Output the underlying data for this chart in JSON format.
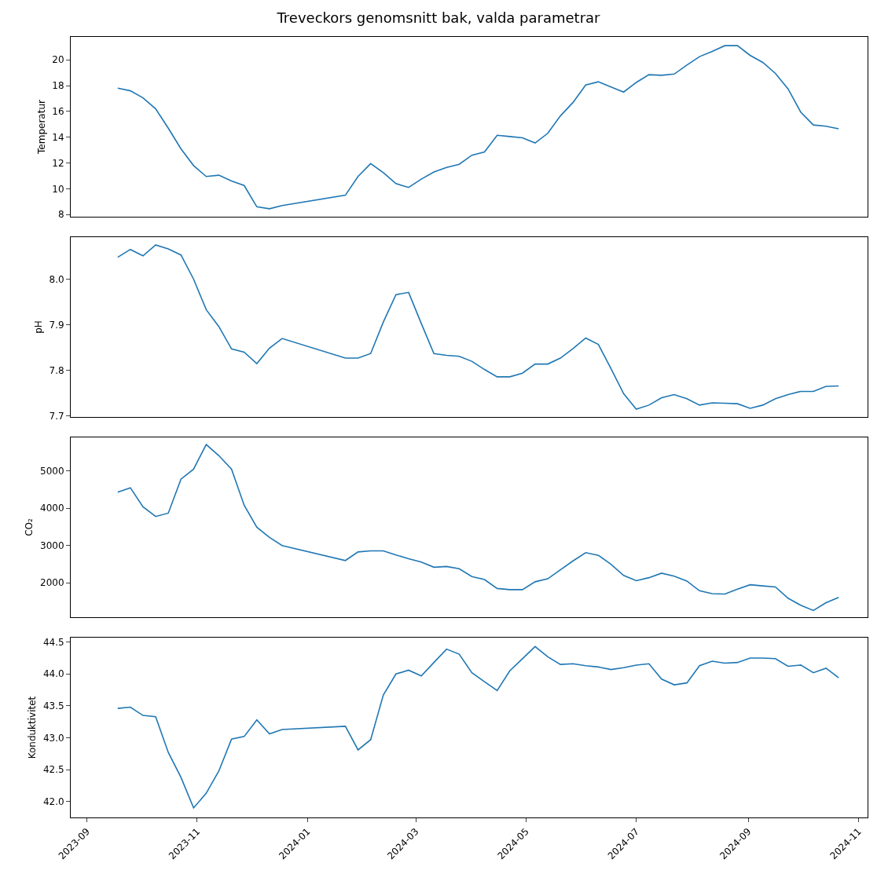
{
  "chart_data": [
    {
      "type": "line",
      "title": "Treveckors genomsnitt bak, valda parametrar",
      "ylabel": "Temperatur",
      "tick_labels": "y",
      "x": [
        "2023-09-18",
        "2023-09-25",
        "2023-10-02",
        "2023-10-09",
        "2023-10-16",
        "2023-10-23",
        "2023-10-30",
        "2023-11-06",
        "2023-11-13",
        "2023-11-20",
        "2023-11-27",
        "2023-12-04",
        "2023-12-11",
        "2023-12-18",
        "2024-01-22",
        "2024-01-29",
        "2024-02-05",
        "2024-02-12",
        "2024-02-19",
        "2024-02-26",
        "2024-03-04",
        "2024-03-11",
        "2024-03-18",
        "2024-03-25",
        "2024-04-01",
        "2024-04-08",
        "2024-04-15",
        "2024-04-22",
        "2024-04-29",
        "2024-05-06",
        "2024-05-13",
        "2024-05-20",
        "2024-05-27",
        "2024-06-03",
        "2024-06-10",
        "2024-06-17",
        "2024-06-24",
        "2024-07-01",
        "2024-07-08",
        "2024-07-15",
        "2024-07-22",
        "2024-07-29",
        "2024-08-05",
        "2024-08-12",
        "2024-08-19",
        "2024-08-26",
        "2024-09-02",
        "2024-09-09",
        "2024-09-16",
        "2024-09-23",
        "2024-09-30",
        "2024-10-07",
        "2024-10-14",
        "2024-10-21"
      ],
      "series": [
        {
          "color": "#1f77b4",
          "values": [
            17.8,
            17.6,
            17.05,
            16.2,
            14.7,
            13.1,
            11.8,
            10.95,
            11.05,
            10.6,
            10.25,
            8.6,
            8.45,
            8.7,
            9.5,
            10.95,
            11.95,
            11.25,
            10.4,
            10.1,
            10.75,
            11.3,
            11.65,
            11.9,
            12.6,
            12.85,
            14.15,
            14.05,
            13.95,
            13.55,
            14.3,
            15.65,
            16.7,
            18.05,
            18.3,
            17.9,
            17.5,
            18.25,
            18.85,
            18.8,
            18.9,
            19.6,
            20.25,
            20.65,
            21.1,
            21.1,
            20.35,
            19.8,
            18.95,
            17.75,
            15.95,
            14.95,
            14.85,
            14.65
          ]
        }
      ],
      "xlim": [
        "2023-08-23",
        "2024-11-06"
      ],
      "ylim": [
        7.83,
        21.78
      ],
      "yticks": [
        8,
        10,
        12,
        14,
        16,
        18,
        20
      ]
    },
    {
      "type": "line",
      "ylabel": "pH",
      "tick_labels": "y",
      "x": [
        "2023-09-18",
        "2023-09-25",
        "2023-10-02",
        "2023-10-09",
        "2023-10-16",
        "2023-10-23",
        "2023-10-30",
        "2023-11-06",
        "2023-11-13",
        "2023-11-20",
        "2023-11-27",
        "2023-12-04",
        "2023-12-11",
        "2023-12-18",
        "2024-01-22",
        "2024-01-29",
        "2024-02-05",
        "2024-02-12",
        "2024-02-19",
        "2024-02-26",
        "2024-03-04",
        "2024-03-11",
        "2024-03-18",
        "2024-03-25",
        "2024-04-01",
        "2024-04-08",
        "2024-04-15",
        "2024-04-22",
        "2024-04-29",
        "2024-05-06",
        "2024-05-13",
        "2024-05-20",
        "2024-05-27",
        "2024-06-03",
        "2024-06-10",
        "2024-06-17",
        "2024-06-24",
        "2024-07-01",
        "2024-07-08",
        "2024-07-15",
        "2024-07-22",
        "2024-07-29",
        "2024-08-05",
        "2024-08-12",
        "2024-08-19",
        "2024-08-26",
        "2024-09-02",
        "2024-09-09",
        "2024-09-16",
        "2024-09-23",
        "2024-09-30",
        "2024-10-07",
        "2024-10-14",
        "2024-10-21"
      ],
      "series": [
        {
          "color": "#1f77b4",
          "values": [
            8.048,
            8.065,
            8.051,
            8.075,
            8.066,
            8.053,
            8.0,
            7.933,
            7.896,
            7.847,
            7.84,
            7.815,
            7.849,
            7.87,
            7.827,
            7.827,
            7.837,
            7.906,
            7.966,
            7.971,
            7.903,
            7.837,
            7.833,
            7.831,
            7.82,
            7.802,
            7.786,
            7.786,
            7.794,
            7.814,
            7.814,
            7.827,
            7.848,
            7.871,
            7.857,
            7.804,
            7.749,
            7.715,
            7.724,
            7.74,
            7.747,
            7.738,
            7.724,
            7.729,
            7.728,
            7.727,
            7.717,
            7.724,
            7.738,
            7.747,
            7.754,
            7.754,
            7.765,
            7.766
          ]
        }
      ],
      "xlim": [
        "2023-08-23",
        "2024-11-06"
      ],
      "ylim": [
        7.698,
        8.092
      ],
      "yticks": [
        {
          "value": 7.7,
          "label": "7.7"
        },
        {
          "value": 7.8,
          "label": "7.8"
        },
        {
          "value": 7.9,
          "label": "7.9"
        },
        {
          "value": 8.0,
          "label": "8.0"
        }
      ]
    },
    {
      "type": "line",
      "ylabel": "CO₂",
      "tick_labels": "y",
      "x": [
        "2023-09-18",
        "2023-09-25",
        "2023-10-02",
        "2023-10-09",
        "2023-10-16",
        "2023-10-23",
        "2023-10-30",
        "2023-11-06",
        "2023-11-13",
        "2023-11-20",
        "2023-11-27",
        "2023-12-04",
        "2023-12-11",
        "2023-12-18",
        "2024-01-22",
        "2024-01-29",
        "2024-02-05",
        "2024-02-12",
        "2024-02-19",
        "2024-02-26",
        "2024-03-04",
        "2024-03-11",
        "2024-03-18",
        "2024-03-25",
        "2024-04-01",
        "2024-04-08",
        "2024-04-15",
        "2024-04-22",
        "2024-04-29",
        "2024-05-06",
        "2024-05-13",
        "2024-05-20",
        "2024-05-27",
        "2024-06-03",
        "2024-06-10",
        "2024-06-17",
        "2024-06-24",
        "2024-07-01",
        "2024-07-08",
        "2024-07-15",
        "2024-07-22",
        "2024-07-29",
        "2024-08-05",
        "2024-08-12",
        "2024-08-19",
        "2024-08-26",
        "2024-09-02",
        "2024-09-09",
        "2024-09-16",
        "2024-09-23",
        "2024-09-30",
        "2024-10-07",
        "2024-10-14",
        "2024-10-21"
      ],
      "series": [
        {
          "color": "#1f77b4",
          "values": [
            4430,
            4550,
            4040,
            3780,
            3870,
            4780,
            5050,
            5710,
            5410,
            5050,
            4080,
            3490,
            3220,
            3000,
            2600,
            2830,
            2860,
            2860,
            2750,
            2650,
            2560,
            2420,
            2440,
            2380,
            2170,
            2090,
            1850,
            1820,
            1820,
            2030,
            2110,
            2350,
            2590,
            2810,
            2740,
            2500,
            2200,
            2060,
            2140,
            2260,
            2180,
            2050,
            1790,
            1710,
            1700,
            1830,
            1950,
            1920,
            1890,
            1590,
            1400,
            1260,
            1470,
            1610
          ]
        }
      ],
      "xlim": [
        "2023-08-23",
        "2024-11-06"
      ],
      "ylim": [
        1080,
        5900
      ],
      "yticks": [
        2000,
        3000,
        4000,
        5000
      ]
    },
    {
      "type": "line",
      "ylabel": "Konduktivitet",
      "x": [
        "2023-09-18",
        "2023-09-25",
        "2023-10-02",
        "2023-10-09",
        "2023-10-16",
        "2023-10-23",
        "2023-10-30",
        "2023-11-06",
        "2023-11-13",
        "2023-11-20",
        "2023-11-27",
        "2023-12-04",
        "2023-12-11",
        "2023-12-18",
        "2024-01-22",
        "2024-01-29",
        "2024-02-05",
        "2024-02-12",
        "2024-02-19",
        "2024-02-26",
        "2024-03-04",
        "2024-03-11",
        "2024-03-18",
        "2024-03-25",
        "2024-04-01",
        "2024-04-08",
        "2024-04-15",
        "2024-04-22",
        "2024-04-29",
        "2024-05-06",
        "2024-05-13",
        "2024-05-20",
        "2024-05-27",
        "2024-06-03",
        "2024-06-10",
        "2024-06-17",
        "2024-06-24",
        "2024-07-01",
        "2024-07-08",
        "2024-07-15",
        "2024-07-22",
        "2024-07-29",
        "2024-08-05",
        "2024-08-12",
        "2024-08-19",
        "2024-08-26",
        "2024-09-02",
        "2024-09-09",
        "2024-09-16",
        "2024-09-23",
        "2024-09-30",
        "2024-10-07",
        "2024-10-14",
        "2024-10-21"
      ],
      "series": [
        {
          "color": "#1f77b4",
          "values": [
            43.46,
            43.48,
            43.35,
            43.33,
            42.77,
            42.38,
            41.9,
            42.13,
            42.48,
            42.98,
            43.02,
            43.28,
            43.06,
            43.13,
            43.18,
            42.81,
            42.97,
            43.67,
            44.0,
            44.06,
            43.97,
            44.18,
            44.39,
            44.31,
            44.02,
            43.88,
            43.74,
            44.05,
            44.24,
            44.43,
            44.27,
            44.15,
            44.16,
            44.13,
            44.11,
            44.07,
            44.1,
            44.14,
            44.16,
            43.92,
            43.83,
            43.86,
            44.13,
            44.2,
            44.17,
            44.18,
            44.25,
            44.25,
            44.24,
            44.12,
            44.14,
            44.02,
            44.09,
            43.94
          ]
        }
      ],
      "xlim": [
        "2023-08-23",
        "2024-11-06"
      ],
      "ylim": [
        41.75,
        44.57
      ],
      "yticks": [
        {
          "value": 42.0,
          "label": "42.0"
        },
        {
          "value": 42.5,
          "label": "42.5"
        },
        {
          "value": 43.0,
          "label": "43.0"
        },
        {
          "value": 43.5,
          "label": "43.5"
        },
        {
          "value": 44.0,
          "label": "44.0"
        },
        {
          "value": 44.5,
          "label": "44.5"
        }
      ],
      "xticks": [
        {
          "value": "2023-09-01",
          "label": "2023-09"
        },
        {
          "value": "2023-11-01",
          "label": "2023-11"
        },
        {
          "value": "2024-01-01",
          "label": "2024-01"
        },
        {
          "value": "2024-03-01",
          "label": "2024-03"
        },
        {
          "value": "2024-05-01",
          "label": "2024-05"
        },
        {
          "value": "2024-07-01",
          "label": "2024-07"
        },
        {
          "value": "2024-09-01",
          "label": "2024-09"
        },
        {
          "value": "2024-11-01",
          "label": "2024-11"
        }
      ]
    }
  ]
}
